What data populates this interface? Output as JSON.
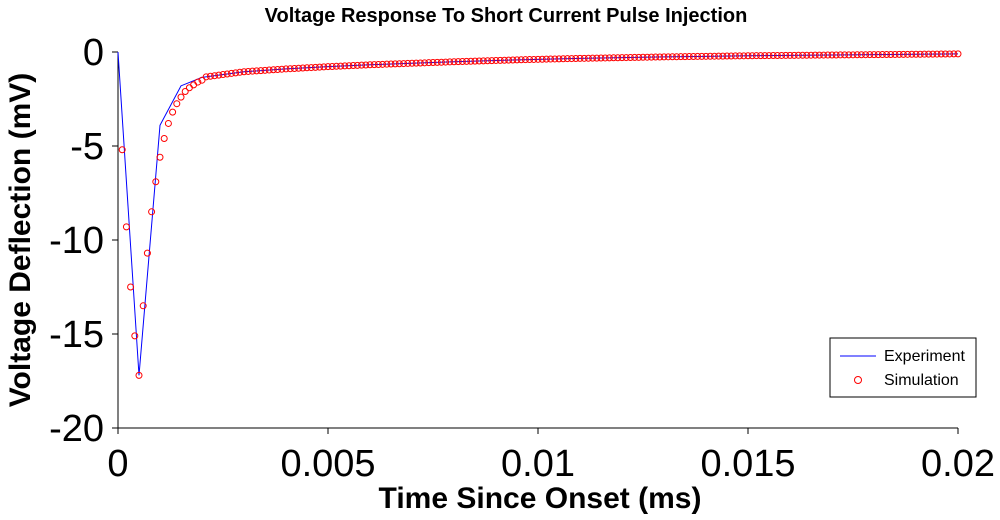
{
  "chart_data": {
    "type": "line",
    "title": "Voltage Response To Short Current Pulse Injection",
    "xlabel": "Time Since Onset (ms)",
    "ylabel": "Voltage Deflection (mV)",
    "xlim": [
      0,
      0.02
    ],
    "ylim": [
      -20,
      0
    ],
    "x_ticks": [
      0,
      0.005,
      0.01,
      0.015,
      0.02
    ],
    "x_tick_labels": [
      "0",
      "0.005",
      "0.01",
      "0.015",
      "0.02"
    ],
    "y_ticks": [
      0,
      -5,
      -10,
      -15,
      -20
    ],
    "y_tick_labels": [
      "0",
      "-5",
      "-10",
      "-15",
      "-20"
    ],
    "grid": false,
    "legend_position": "bottom-right",
    "series": [
      {
        "name": "Experiment",
        "style": "line",
        "color": "#0000ff",
        "x": [
          0,
          0.0005,
          0.001,
          0.0015,
          0.002,
          0.003,
          0.004,
          0.005,
          0.006,
          0.007,
          0.008,
          0.009,
          0.01,
          0.011,
          0.012,
          0.013,
          0.014,
          0.015,
          0.016,
          0.017,
          0.018,
          0.019,
          0.02
        ],
        "values": [
          0,
          -17.2,
          -3.9,
          -1.8,
          -1.35,
          -1.05,
          -0.9,
          -0.78,
          -0.68,
          -0.6,
          -0.52,
          -0.45,
          -0.39,
          -0.34,
          -0.3,
          -0.26,
          -0.23,
          -0.2,
          -0.18,
          -0.16,
          -0.14,
          -0.12,
          -0.1
        ]
      },
      {
        "name": "Simulation",
        "style": "scatter",
        "color": "#ff0000",
        "x": [
          0.0001,
          0.0002,
          0.0003,
          0.0004,
          0.0005,
          0.0006,
          0.0007,
          0.0008,
          0.0009,
          0.001,
          0.0011,
          0.0012,
          0.0013,
          0.0014,
          0.0015,
          0.0016,
          0.0017,
          0.0018,
          0.0019,
          0.002
        ],
        "values": [
          -5.2,
          -9.3,
          -12.5,
          -15.1,
          -17.2,
          -13.5,
          -10.7,
          -8.5,
          -6.9,
          -5.6,
          -4.6,
          -3.8,
          -3.2,
          -2.75,
          -2.4,
          -2.1,
          -1.9,
          -1.75,
          -1.6,
          -1.5
        ]
      }
    ]
  }
}
